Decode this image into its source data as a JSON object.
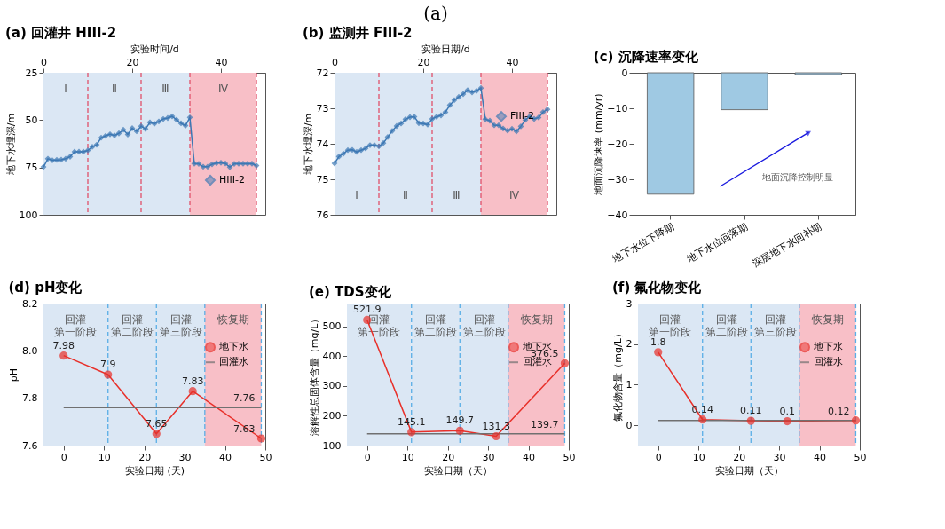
{
  "chart_data": [
    {
      "type": "line",
      "title": "(a) 回灌井 HIII-2",
      "annotations": [
        "(a)"
      ],
      "xlabel": "实验时间/d",
      "ylabel": "地下水埋深/m",
      "xlim": [
        0,
        50
      ],
      "xticks": [
        0,
        20,
        40
      ],
      "ylim": [
        100,
        25
      ],
      "yticks": [
        25,
        50,
        75,
        100
      ],
      "legend": "bottom right",
      "marker": "diamond",
      "x": [
        0,
        1,
        2,
        3,
        4,
        5,
        6,
        7,
        8,
        9,
        10,
        11,
        12,
        13,
        14,
        15,
        16,
        17,
        18,
        19,
        20,
        21,
        22,
        23,
        24,
        25,
        26,
        27,
        28,
        29,
        30,
        31,
        32,
        33,
        34,
        35,
        36,
        37,
        38,
        39,
        40,
        41,
        42,
        43,
        44,
        45,
        46,
        47,
        48
      ],
      "bands": [
        {
          "axis": "x",
          "from": 0,
          "to": 10,
          "label": "Ⅰ",
          "color": "#dbe7f4"
        },
        {
          "axis": "x",
          "from": 10,
          "to": 22,
          "label": "Ⅱ",
          "color": "#dbe7f4"
        },
        {
          "axis": "x",
          "from": 22,
          "to": 33,
          "label": "Ⅲ",
          "color": "#dbe7f4"
        },
        {
          "axis": "x",
          "from": 33,
          "to": 48,
          "label": "Ⅳ",
          "color": "#f8bfc7"
        }
      ],
      "ref_lines": [
        {
          "axis": "x",
          "value": 10,
          "color": "#e0506a",
          "line_style": "dashed"
        },
        {
          "axis": "x",
          "value": 22,
          "color": "#e0506a",
          "line_style": "dashed"
        },
        {
          "axis": "x",
          "value": 33,
          "color": "#e0506a",
          "line_style": "dashed"
        },
        {
          "axis": "x",
          "value": 48,
          "color": "#e0506a",
          "line_style": "dashed"
        }
      ],
      "series": [
        {
          "name": "HIII-2",
          "color": "#3c78b4",
          "values": [
            74.7,
            70.4,
            71.2,
            71.0,
            70.9,
            70.4,
            69.3,
            66.7,
            66.7,
            66.7,
            66.0,
            64.1,
            63.0,
            59.3,
            58.3,
            57.5,
            58.1,
            57.0,
            55.1,
            57.6,
            54.3,
            55.9,
            53.2,
            54.7,
            51.2,
            51.9,
            50.7,
            49.4,
            48.9,
            48.0,
            49.8,
            51.7,
            52.9,
            48.6,
            73.0,
            73.1,
            74.6,
            74.6,
            73.3,
            72.7,
            72.5,
            72.9,
            74.8,
            73.1,
            73.0,
            73.0,
            73.0,
            73.0,
            74.0
          ]
        }
      ]
    },
    {
      "type": "line",
      "title": "(b) 监测井 FIII-2",
      "xlabel": "实验日期/d",
      "ylabel": "地下水埋深/m",
      "xlim": [
        0,
        50
      ],
      "xticks": [
        0,
        20,
        40
      ],
      "ylim": [
        76,
        72
      ],
      "yticks": [
        72,
        73,
        74,
        75,
        76
      ],
      "legend": "top right",
      "marker": "diamond",
      "x": [
        0,
        1,
        2,
        3,
        4,
        5,
        6,
        7,
        8,
        9,
        10,
        11,
        12,
        13,
        14,
        15,
        16,
        17,
        18,
        19,
        20,
        21,
        22,
        23,
        24,
        25,
        26,
        27,
        28,
        29,
        30,
        31,
        32,
        33,
        34,
        35,
        36,
        37,
        38,
        39,
        40,
        41,
        42,
        43,
        44,
        45,
        46,
        47,
        48
      ],
      "bands": [
        {
          "axis": "x",
          "from": 0,
          "to": 10,
          "label": "Ⅰ",
          "color": "#dbe7f4"
        },
        {
          "axis": "x",
          "from": 10,
          "to": 22,
          "label": "Ⅱ",
          "color": "#dbe7f4"
        },
        {
          "axis": "x",
          "from": 22,
          "to": 33,
          "label": "Ⅲ",
          "color": "#dbe7f4"
        },
        {
          "axis": "x",
          "from": 33,
          "to": 48,
          "label": "Ⅳ",
          "color": "#f8bfc7"
        }
      ],
      "ref_lines": [
        {
          "axis": "x",
          "value": 10,
          "color": "#e0506a",
          "line_style": "dashed"
        },
        {
          "axis": "x",
          "value": 22,
          "color": "#e0506a",
          "line_style": "dashed"
        },
        {
          "axis": "x",
          "value": 33,
          "color": "#e0506a",
          "line_style": "dashed"
        },
        {
          "axis": "x",
          "value": 48,
          "color": "#e0506a",
          "line_style": "dashed"
        }
      ],
      "series": [
        {
          "name": "FIII-2",
          "color": "#3c78b4",
          "values": [
            74.55,
            74.36,
            74.28,
            74.18,
            74.17,
            74.23,
            74.18,
            74.13,
            74.04,
            74.04,
            74.07,
            73.98,
            73.81,
            73.64,
            73.5,
            73.43,
            73.31,
            73.25,
            73.24,
            73.42,
            73.43,
            73.46,
            73.3,
            73.24,
            73.2,
            73.11,
            72.91,
            72.77,
            72.68,
            72.6,
            72.49,
            72.55,
            72.51,
            72.43,
            73.31,
            73.35,
            73.48,
            73.48,
            73.57,
            73.63,
            73.58,
            73.65,
            73.51,
            73.33,
            73.23,
            73.3,
            73.26,
            73.11,
            73.03
          ]
        }
      ]
    },
    {
      "type": "bar",
      "title": "(c) 沉降速率变化",
      "ylabel": "地面沉降速率 (mm/yr)",
      "categories": [
        "地下水位下降期",
        "地下水位回落期",
        "深层地下水回补期"
      ],
      "values": [
        -34.2,
        -10.4,
        -0.5
      ],
      "color": "#9fc9e3",
      "ylim": [
        -40,
        0
      ],
      "yticks": [
        -40,
        -30,
        -20,
        -10,
        0
      ],
      "annotations": [
        "地面沉降控制明显"
      ]
    },
    {
      "type": "line",
      "title": "(d) pH变化",
      "xlabel": "实验日期 (天)",
      "ylabel": "pH",
      "xlim": [
        -5,
        50
      ],
      "xticks": [
        0,
        10,
        20,
        30,
        40,
        50
      ],
      "ylim": [
        7.6,
        8.2
      ],
      "yticks": [
        7.6,
        7.8,
        {
          "value": 8,
          "label": "8.0"
        },
        8.2
      ],
      "legend": "top right",
      "marker": "circle",
      "bands": [
        {
          "axis": "x",
          "from": -5,
          "to": 11,
          "label": "回灌第一阶段",
          "color": "#dbe7f4"
        },
        {
          "axis": "x",
          "from": 11,
          "to": 23,
          "label": "回灌第二阶段",
          "color": "#dbe7f4"
        },
        {
          "axis": "x",
          "from": 23,
          "to": 35,
          "label": "回灌第三阶段",
          "color": "#dbe7f4"
        },
        {
          "axis": "x",
          "from": 35,
          "to": 49,
          "label": "恢复期",
          "color": "#f8bfc7"
        }
      ],
      "ref_lines": [
        {
          "axis": "x",
          "value": 11,
          "color": "#5aaee6",
          "line_style": "dashed"
        },
        {
          "axis": "x",
          "value": 23,
          "color": "#5aaee6",
          "line_style": "dashed"
        },
        {
          "axis": "x",
          "value": 35,
          "color": "#5aaee6",
          "line_style": "dashed"
        },
        {
          "axis": "x",
          "value": 49,
          "color": "#5aaee6",
          "line_style": "dashed"
        }
      ],
      "series": [
        {
          "name": "地下水",
          "color": "#e8302a",
          "x": [
            0,
            11,
            23,
            32,
            49
          ],
          "values": [
            7.98,
            7.9,
            7.65,
            7.83,
            7.63
          ],
          "value_labels": [
            "7.98",
            "7.9",
            "7.65",
            "7.83",
            "7.63"
          ]
        },
        {
          "name": "回灌水",
          "color": "#707070",
          "marker": "none",
          "x": [
            0,
            49
          ],
          "values": [
            7.76,
            7.76
          ],
          "value_labels": [
            null,
            "7.76"
          ]
        }
      ]
    },
    {
      "type": "line",
      "title": "(e) TDS变化",
      "xlabel": "实验日期（天）",
      "ylabel": "溶解性总固体含量（mg/L）",
      "xlim": [
        -5,
        50
      ],
      "xticks": [
        0,
        10,
        20,
        30,
        40,
        50
      ],
      "ylim": [
        100,
        577
      ],
      "yticks": [
        100,
        200,
        300,
        400,
        500
      ],
      "legend": "top right",
      "marker": "circle",
      "bands": [
        {
          "axis": "x",
          "from": -5,
          "to": 11,
          "label": "回灌第一阶段",
          "color": "#dbe7f4"
        },
        {
          "axis": "x",
          "from": 11,
          "to": 23,
          "label": "回灌第二阶段",
          "color": "#dbe7f4"
        },
        {
          "axis": "x",
          "from": 23,
          "to": 35,
          "label": "回灌第三阶段",
          "color": "#dbe7f4"
        },
        {
          "axis": "x",
          "from": 35,
          "to": 49,
          "label": "恢复期",
          "color": "#f8bfc7"
        }
      ],
      "ref_lines": [
        {
          "axis": "x",
          "value": 11,
          "color": "#5aaee6",
          "line_style": "dashed"
        },
        {
          "axis": "x",
          "value": 23,
          "color": "#5aaee6",
          "line_style": "dashed"
        },
        {
          "axis": "x",
          "value": 35,
          "color": "#5aaee6",
          "line_style": "dashed"
        },
        {
          "axis": "x",
          "value": 49,
          "color": "#5aaee6",
          "line_style": "dashed"
        }
      ],
      "series": [
        {
          "name": "地下水",
          "color": "#e8302a",
          "x": [
            0,
            11,
            23,
            32,
            49
          ],
          "values": [
            521.9,
            145.1,
            149.7,
            131.3,
            376.5
          ],
          "value_labels": [
            "521.9",
            "145.1",
            "149.7",
            "131.3",
            "376.5"
          ]
        },
        {
          "name": "回灌水",
          "color": "#707070",
          "marker": "none",
          "x": [
            0,
            49
          ],
          "values": [
            139.7,
            139.7
          ],
          "value_labels": [
            null,
            "139.7"
          ]
        }
      ]
    },
    {
      "type": "line",
      "title": "(f) 氟化物变化",
      "xlabel": "实验日期（天）",
      "ylabel": "氟化物含量（mg/L）",
      "xlim": [
        -5,
        50
      ],
      "xticks": [
        0,
        10,
        20,
        30,
        40,
        50
      ],
      "ylim": [
        -0.5,
        3
      ],
      "yticks": [
        0,
        1,
        2,
        3
      ],
      "legend": "top right",
      "marker": "circle",
      "bands": [
        {
          "axis": "x",
          "from": -5,
          "to": 11,
          "label": "回灌第一阶段",
          "color": "#dbe7f4"
        },
        {
          "axis": "x",
          "from": 11,
          "to": 23,
          "label": "回灌第二阶段",
          "color": "#dbe7f4"
        },
        {
          "axis": "x",
          "from": 23,
          "to": 35,
          "label": "回灌第三阶段",
          "color": "#dbe7f4"
        },
        {
          "axis": "x",
          "from": 35,
          "to": 49,
          "label": "恢复期",
          "color": "#f8bfc7"
        }
      ],
      "ref_lines": [
        {
          "axis": "x",
          "value": 11,
          "color": "#5aaee6",
          "line_style": "dashed"
        },
        {
          "axis": "x",
          "value": 23,
          "color": "#5aaee6",
          "line_style": "dashed"
        },
        {
          "axis": "x",
          "value": 35,
          "color": "#5aaee6",
          "line_style": "dashed"
        },
        {
          "axis": "x",
          "value": 49,
          "color": "#5aaee6",
          "line_style": "dashed"
        }
      ],
      "series": [
        {
          "name": "地下水",
          "color": "#e8302a",
          "x": [
            0,
            11,
            23,
            32,
            49
          ],
          "values": [
            1.8,
            0.14,
            0.11,
            0.1,
            0.12
          ],
          "value_labels": [
            "1.8",
            "0.14",
            "0.11",
            "0.1",
            "0.12"
          ]
        },
        {
          "name": "回灌水",
          "color": "#707070",
          "marker": "none",
          "x": [
            0,
            49
          ],
          "values": [
            0.12,
            0.12
          ]
        }
      ]
    }
  ]
}
